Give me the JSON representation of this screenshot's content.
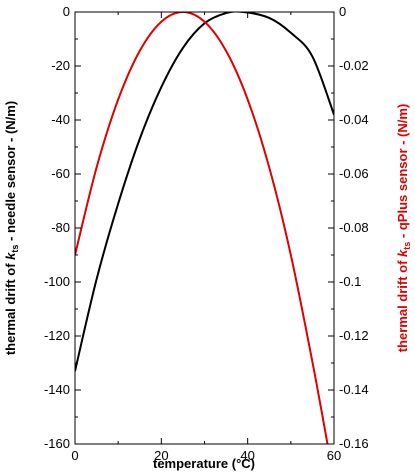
{
  "chart_data": {
    "type": "line",
    "title": "",
    "xlabel": "temperature (°C)",
    "ylabel_left": {
      "before": "thermal drift of ",
      "k": "k",
      "sub": "ts",
      "after": " - needle sensor - (N/m)"
    },
    "ylabel_right": {
      "before": "thermal drift of ",
      "k": "k",
      "sub": "ts",
      "after": " - qPlus sensor - (N/m)"
    },
    "xlim": [
      0,
      60
    ],
    "ylim_left": [
      -160,
      0
    ],
    "ylim_right": [
      -0.16,
      0
    ],
    "x_ticks": [
      {
        "value": 0,
        "label": "0"
      },
      {
        "value": 20,
        "label": "20"
      },
      {
        "value": 40,
        "label": "40"
      },
      {
        "value": 60,
        "label": "60"
      }
    ],
    "y_ticks_left": [
      {
        "value": 0,
        "label": "0"
      },
      {
        "value": -20,
        "label": "-20"
      },
      {
        "value": -40,
        "label": "-40"
      },
      {
        "value": -60,
        "label": "-60"
      },
      {
        "value": -80,
        "label": "-80"
      },
      {
        "value": -100,
        "label": "-100"
      },
      {
        "value": -120,
        "label": "-120"
      },
      {
        "value": -140,
        "label": "-140"
      },
      {
        "value": -160,
        "label": "-160"
      }
    ],
    "y_ticks_right": [
      {
        "value": 0,
        "label": "0"
      },
      {
        "value": -0.02,
        "label": "-0.02"
      },
      {
        "value": -0.04,
        "label": "-0.04"
      },
      {
        "value": -0.06,
        "label": "-0.06"
      },
      {
        "value": -0.08,
        "label": "-0.08"
      },
      {
        "value": -0.1,
        "label": "-0.1"
      },
      {
        "value": -0.12,
        "label": "-0.12"
      },
      {
        "value": -0.14,
        "label": "-0.14"
      },
      {
        "value": -0.16,
        "label": "-0.16"
      }
    ],
    "grid": false,
    "series": [
      {
        "axis": "left",
        "color": "#000000",
        "x": [
          0,
          5,
          10,
          15,
          20,
          25,
          30,
          35,
          39,
          45,
          50,
          55,
          60
        ],
        "y": [
          -133,
          -99,
          -71,
          -47,
          -27.8,
          -13.3,
          -4.2,
          -0.4,
          0,
          -2.2,
          -7.7,
          -16.5,
          -38
        ]
      },
      {
        "axis": "right",
        "color": "#e00000",
        "x": [
          0,
          5,
          10,
          15,
          20,
          25,
          30,
          35,
          40,
          45,
          50,
          55,
          58.5
        ],
        "y": [
          -0.09,
          -0.0576,
          -0.0324,
          -0.0144,
          -0.0036,
          0,
          -0.0036,
          -0.0144,
          -0.0324,
          -0.0576,
          -0.09,
          -0.1296,
          -0.16
        ]
      }
    ]
  }
}
